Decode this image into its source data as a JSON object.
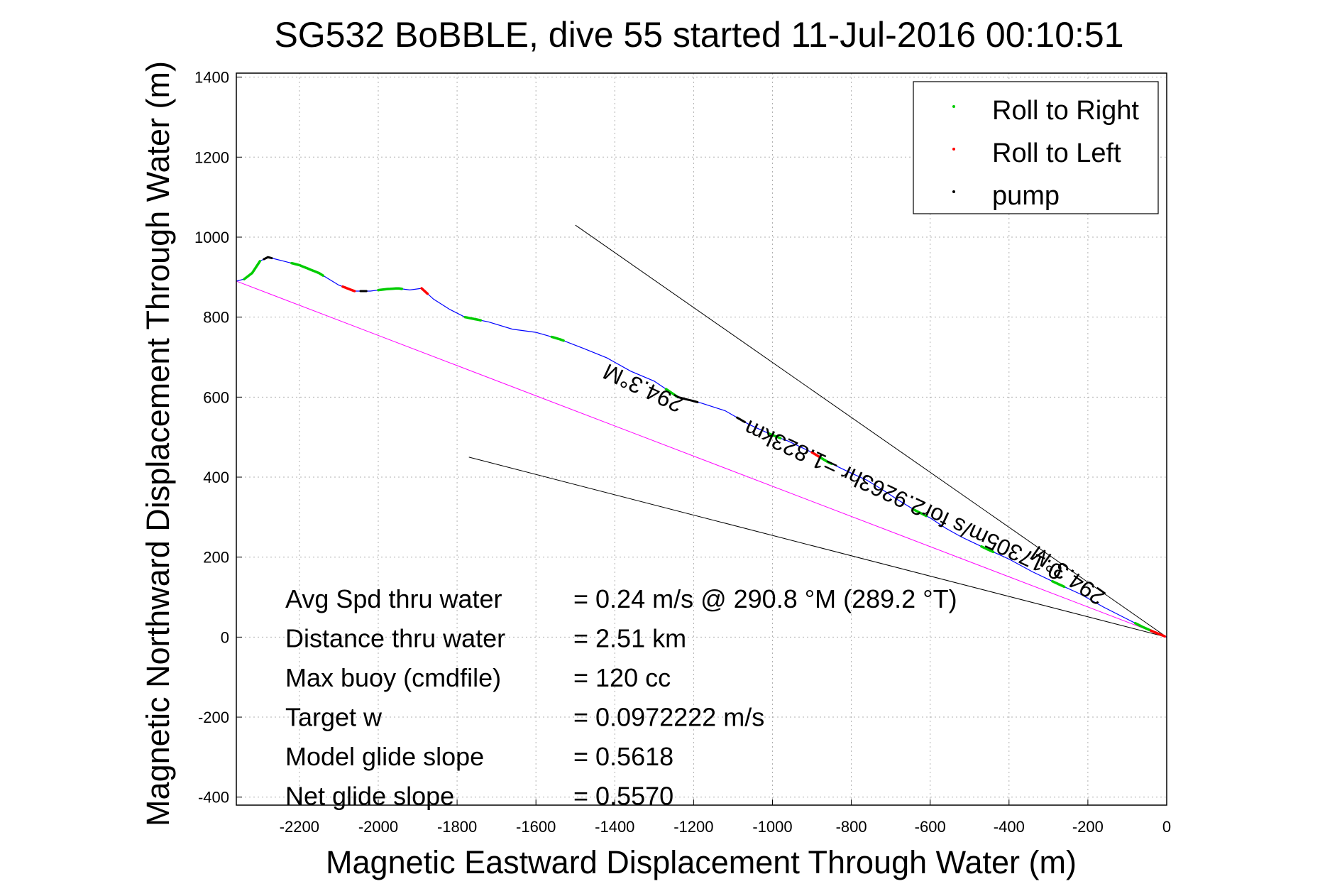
{
  "chart_data": {
    "type": "scatter",
    "title": "SG532 BoBBLE, dive 55 started 11-Jul-2016 00:10:51",
    "xlabel": "Magnetic Eastward Displacement Through Water (m)",
    "ylabel": "Magnetic Northward Displacement Through Water (m)",
    "xlim": [
      -2360,
      0
    ],
    "ylim": [
      -420,
      1410
    ],
    "x_ticks": [
      -2200,
      -2000,
      -1800,
      -1600,
      -1400,
      -1200,
      -1000,
      -800,
      -600,
      -400,
      -200,
      0
    ],
    "y_ticks": [
      -400,
      -200,
      0,
      200,
      400,
      600,
      800,
      1000,
      1200,
      1400
    ],
    "grid": true,
    "legend_position": "top-right",
    "legend": [
      {
        "label": "Roll to Right",
        "color": "#00cc00"
      },
      {
        "label": "Roll to Left",
        "color": "#ff0000"
      },
      {
        "label": "pump",
        "color": "#000000"
      }
    ],
    "track": {
      "color": "#0000ff",
      "x": [
        0,
        -10,
        -30,
        -60,
        -100,
        -160,
        -220,
        -280,
        -340,
        -400,
        -460,
        -520,
        -560,
        -600,
        -640,
        -680,
        -720,
        -760,
        -800,
        -860,
        -900,
        -960,
        -1000,
        -1060,
        -1120,
        -1180,
        -1240,
        -1300,
        -1360,
        -1420,
        -1480,
        -1540,
        -1600,
        -1660,
        -1720,
        -1780,
        -1820,
        -1860,
        -1890,
        -1920,
        -1950,
        -1980,
        -2020,
        -2060,
        -2100,
        -2150,
        -2200,
        -2240,
        -2260,
        -2280,
        -2300,
        -2320,
        -2340,
        -2360
      ],
      "y": [
        0,
        4,
        12,
        25,
        45,
        75,
        108,
        135,
        163,
        195,
        222,
        250,
        272,
        298,
        318,
        342,
        368,
        392,
        410,
        438,
        462,
        490,
        505,
        532,
        566,
        585,
        600,
        640,
        665,
        698,
        722,
        745,
        762,
        770,
        788,
        800,
        820,
        845,
        872,
        868,
        872,
        870,
        865,
        865,
        880,
        910,
        930,
        940,
        945,
        950,
        940,
        910,
        895,
        890
      ]
    },
    "roll_right_segments": [
      {
        "x0": -80,
        "x1": -40
      },
      {
        "x0": -290,
        "x1": -260
      },
      {
        "x0": -470,
        "x1": -440
      },
      {
        "x0": -640,
        "x1": -610
      },
      {
        "x0": -880,
        "x1": -850
      },
      {
        "x0": -1010,
        "x1": -980
      },
      {
        "x0": -1270,
        "x1": -1240
      },
      {
        "x0": -1560,
        "x1": -1530
      },
      {
        "x0": -1780,
        "x1": -1740
      },
      {
        "x0": -2000,
        "x1": -1940
      },
      {
        "x0": -2220,
        "x1": -2140
      },
      {
        "x0": -2340,
        "x1": -2300
      }
    ],
    "roll_left_segments": [
      {
        "x0": -40,
        "x1": -5
      },
      {
        "x0": -900,
        "x1": -880
      },
      {
        "x0": -2090,
        "x1": -2060
      },
      {
        "x0": -1890,
        "x1": -1875
      }
    ],
    "pump_segments": [
      {
        "x0": -1240,
        "x1": -1190
      },
      {
        "x0": -1090,
        "x1": -1070
      },
      {
        "x0": -2045,
        "x1": -2030
      },
      {
        "x0": -2290,
        "x1": -2270
      }
    ],
    "fit_line": {
      "color": "#ff00ff",
      "x": [
        0,
        -2360
      ],
      "y": [
        0,
        890
      ]
    },
    "heading_lines": [
      {
        "x": [
          0,
          -1500
        ],
        "y": [
          0,
          1030
        ]
      },
      {
        "x": [
          0,
          -1770
        ],
        "y": [
          0,
          450
        ]
      }
    ],
    "rotated_annotations": [
      {
        "text": "294.3°M",
        "x": -1320,
        "y": 640,
        "angle": 205
      },
      {
        "text": "0.17305m/s for2.9263hr =1.823km",
        "x": -660,
        "y": 360,
        "angle": 205
      },
      {
        "text": "294.3°M",
        "x": -240,
        "y": 170,
        "angle": 215
      }
    ],
    "stats": [
      {
        "label": "Avg Spd thru water",
        "value": "=  0.24 m/s @ 290.8 °M (289.2 °T)"
      },
      {
        "label": "Distance thru water",
        "value": "=  2.51 km"
      },
      {
        "label": "Max buoy (cmdfile)",
        "value": "= 120 cc"
      },
      {
        "label": "Target w",
        "value": "= 0.0972222 m/s"
      },
      {
        "label": "Model glide slope",
        "value": "= 0.5618"
      },
      {
        "label": "Net glide slope",
        "value": "= 0.5570"
      }
    ]
  }
}
